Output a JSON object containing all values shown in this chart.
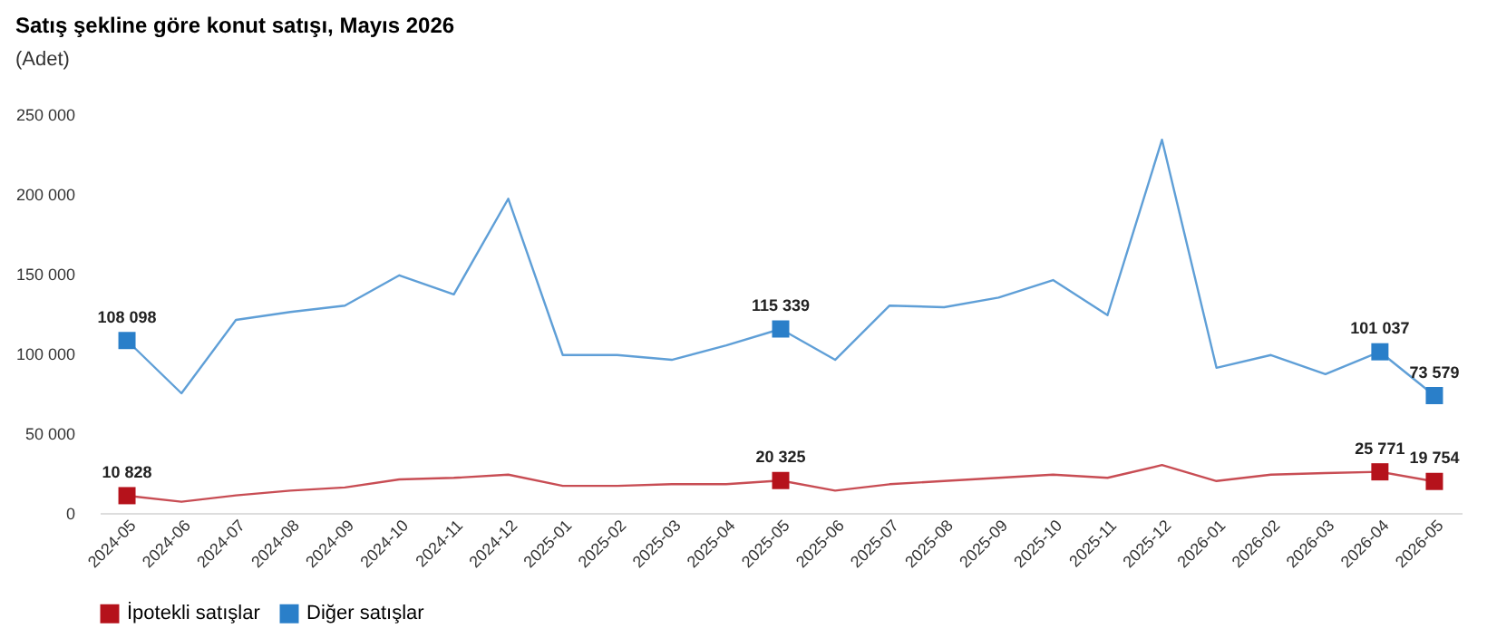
{
  "chart_data": {
    "type": "line",
    "title": "Satış şekline göre konut satışı, Mayıs 2026",
    "subtitle": "(Adet)",
    "categories": [
      "2024-05",
      "2024-06",
      "2024-07",
      "2024-08",
      "2024-09",
      "2024-10",
      "2024-11",
      "2024-12",
      "2025-01",
      "2025-02",
      "2025-03",
      "2025-04",
      "2025-05",
      "2025-06",
      "2025-07",
      "2025-08",
      "2025-09",
      "2025-10",
      "2025-11",
      "2025-12",
      "2026-01",
      "2026-02",
      "2026-03",
      "2026-04",
      "2026-05"
    ],
    "series": [
      {
        "name": "İpotekli satışlar",
        "color": "#b5121b",
        "values": [
          10828,
          7000,
          11000,
          14000,
          16000,
          21000,
          22000,
          24000,
          17000,
          17000,
          18000,
          18000,
          20325,
          14000,
          18000,
          20000,
          22000,
          24000,
          22000,
          30000,
          20000,
          24000,
          25000,
          25771,
          19754
        ]
      },
      {
        "name": "Diğer satışlar",
        "color": "#2a7fc9",
        "values": [
          108098,
          75000,
          121000,
          126000,
          130000,
          149000,
          137000,
          197000,
          99000,
          99000,
          96000,
          105000,
          115339,
          96000,
          130000,
          129000,
          135000,
          146000,
          124000,
          234000,
          91000,
          99000,
          87000,
          101037,
          73579
        ]
      },
      {
        "type": "scatter",
        "marker": "square",
        "color": "#b5121b",
        "values": [
          10828,
          null,
          null,
          null,
          null,
          null,
          null,
          null,
          null,
          null,
          null,
          null,
          20325,
          null,
          null,
          null,
          null,
          null,
          null,
          null,
          null,
          null,
          null,
          25771,
          19754
        ],
        "value_labels": [
          "10 828",
          null,
          null,
          null,
          null,
          null,
          null,
          null,
          null,
          null,
          null,
          null,
          "20 325",
          null,
          null,
          null,
          null,
          null,
          null,
          null,
          null,
          null,
          null,
          "25 771",
          "19 754"
        ]
      },
      {
        "type": "scatter",
        "marker": "square",
        "color": "#2a7fc9",
        "values": [
          108098,
          null,
          null,
          null,
          null,
          null,
          null,
          null,
          null,
          null,
          null,
          null,
          115339,
          null,
          null,
          null,
          null,
          null,
          null,
          null,
          null,
          null,
          null,
          101037,
          73579
        ],
        "value_labels": [
          "108 098",
          null,
          null,
          null,
          null,
          null,
          null,
          null,
          null,
          null,
          null,
          null,
          "115 339",
          null,
          null,
          null,
          null,
          null,
          null,
          null,
          null,
          null,
          null,
          "101 037",
          "73 579"
        ]
      }
    ],
    "ylim": [
      0,
      250000
    ],
    "yticks": [
      0,
      50000,
      100000,
      150000,
      200000,
      250000
    ],
    "grid": false,
    "legend": "bottom",
    "line_style": "solid"
  }
}
